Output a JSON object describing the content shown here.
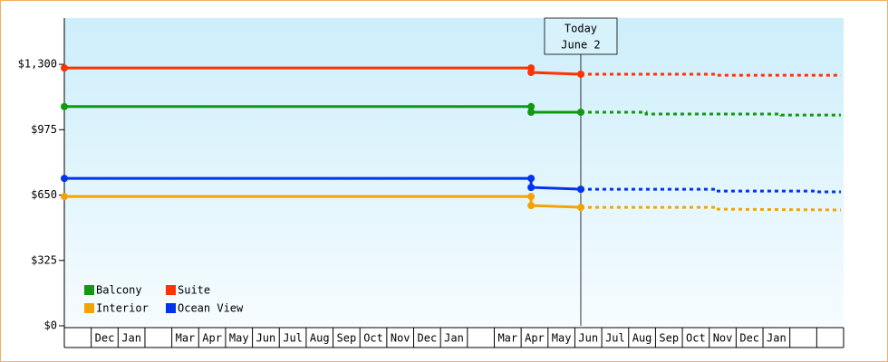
{
  "chart_data": {
    "type": "line",
    "categories": [
      null,
      "Dec",
      "Jan",
      null,
      "Mar",
      "Apr",
      "May",
      "Jun",
      "Jul",
      "Aug",
      "Sep",
      "Oct",
      "Nov",
      "Dec",
      "Jan",
      null,
      "Mar",
      "Apr",
      "May",
      "Jun",
      "Jul",
      "Aug",
      "Sep",
      "Oct",
      "Nov",
      "Dec",
      "Jan",
      null,
      null
    ],
    "xlim": [
      0,
      29
    ],
    "ylim": [
      0,
      1530
    ],
    "yticks": [
      {
        "value": 0,
        "label": "$0"
      },
      {
        "value": 325,
        "label": "$325"
      },
      {
        "value": 650,
        "label": "$650"
      },
      {
        "value": 975,
        "label": "$975"
      },
      {
        "value": 1300,
        "label": "$1,300"
      }
    ],
    "annotation": {
      "lines": [
        "Today",
        "June 2"
      ],
      "x": 19.22
    },
    "series": [
      {
        "name": "Balcony",
        "color": "#119911",
        "x": [
          0,
          17.37,
          17.37,
          19.22
        ],
        "values": [
          1090,
          1090,
          1062,
          1062
        ],
        "projection": {
          "x": [
            19.22,
            21.65,
            21.65,
            26.67,
            26.67,
            28.9
          ],
          "values": [
            1062,
            1062,
            1053,
            1053,
            1048,
            1048
          ]
        }
      },
      {
        "name": "Suite",
        "color": "#ff3300",
        "x": [
          0,
          17.37,
          17.37,
          19.22
        ],
        "values": [
          1282,
          1282,
          1260,
          1251
        ],
        "projection": {
          "x": [
            19.22,
            24.25,
            24.25,
            28.9
          ],
          "values": [
            1251,
            1251,
            1246,
            1246
          ]
        }
      },
      {
        "name": "Interior",
        "color": "#f5a300",
        "x": [
          0,
          17.37,
          17.37,
          19.22
        ],
        "values": [
          643,
          643,
          598,
          589
        ],
        "projection": {
          "x": [
            19.22,
            24.25,
            24.25,
            28.9
          ],
          "values": [
            589,
            589,
            580,
            576
          ]
        }
      },
      {
        "name": "Ocean View",
        "color": "#0033ee",
        "x": [
          0,
          17.37,
          17.37,
          19.22
        ],
        "values": [
          733,
          733,
          688,
          679
        ],
        "projection": {
          "x": [
            19.22,
            24.25,
            24.25,
            27.95,
            27.95,
            28.9
          ],
          "values": [
            679,
            679,
            670,
            670,
            666,
            666
          ]
        }
      }
    ],
    "grid": false
  }
}
